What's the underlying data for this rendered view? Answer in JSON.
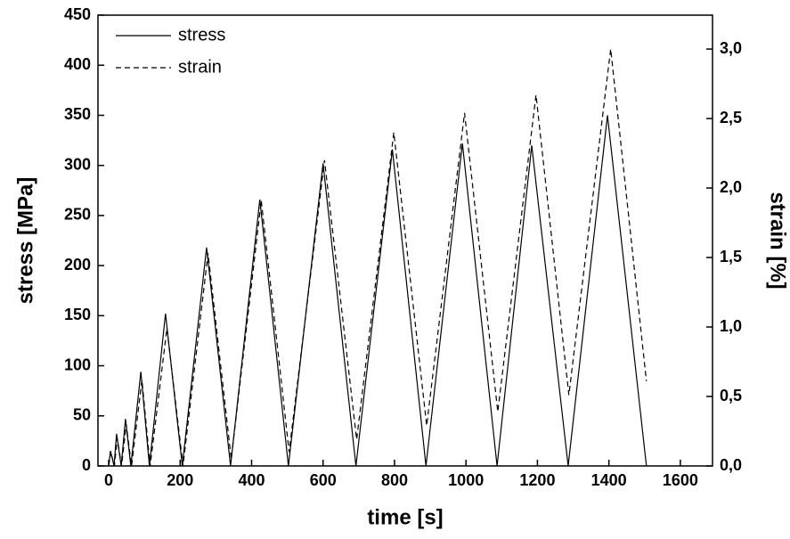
{
  "chart_data": {
    "type": "line",
    "x_label": "time [s]",
    "y_label": "stress [MPa]",
    "y2_label": "strain [%]",
    "xlim": [
      -30,
      1690
    ],
    "xticks": [
      0,
      200,
      400,
      600,
      800,
      1000,
      1200,
      1400,
      1600
    ],
    "ylim": [
      0,
      450
    ],
    "yticks": [
      0,
      50,
      100,
      150,
      200,
      250,
      300,
      350,
      400,
      450
    ],
    "y2lim": [
      0,
      3.244
    ],
    "y2ticks": [
      {
        "value": 0,
        "label": "0,0"
      },
      {
        "value": 0.5,
        "label": "0,5"
      },
      {
        "value": 1,
        "label": "1,0"
      },
      {
        "value": 1.5,
        "label": "1,5"
      },
      {
        "value": 2,
        "label": "2,0"
      },
      {
        "value": 2.5,
        "label": "2,5"
      },
      {
        "value": 3,
        "label": "3,0"
      }
    ],
    "legend": "top-left",
    "series": [
      {
        "name": "stress",
        "color": "#000000",
        "dash": "solid",
        "axis": "y",
        "x": [
          0,
          5,
          15,
          22,
          35,
          47,
          62,
          90,
          114,
          159,
          206,
          274,
          341,
          423,
          503,
          600,
          692,
          794,
          888,
          990,
          1087,
          1184,
          1286,
          1396,
          1505
        ],
        "values": [
          0,
          15,
          0,
          32,
          0,
          47,
          0,
          94,
          0,
          152,
          0,
          218,
          0,
          266,
          0,
          302,
          0,
          316,
          0,
          322,
          0,
          320,
          0,
          350,
          0
        ]
      },
      {
        "name": "strain",
        "color": "#000000",
        "dash": "dashed",
        "axis": "y2",
        "x": [
          0,
          6,
          16,
          24,
          36,
          49,
          64,
          93,
          116,
          163,
          208,
          278,
          343,
          427,
          505,
          604,
          694,
          798,
          890,
          996,
          1089,
          1196,
          1288,
          1405,
          1505
        ],
        "values": [
          0,
          0.1,
          0,
          0.2,
          0,
          0.3,
          0,
          0.62,
          0,
          0.99,
          0,
          1.53,
          0.05,
          1.91,
          0.1,
          2.2,
          0.19,
          2.4,
          0.29,
          2.54,
          0.39,
          2.67,
          0.51,
          3.0,
          0.61
        ]
      }
    ]
  }
}
